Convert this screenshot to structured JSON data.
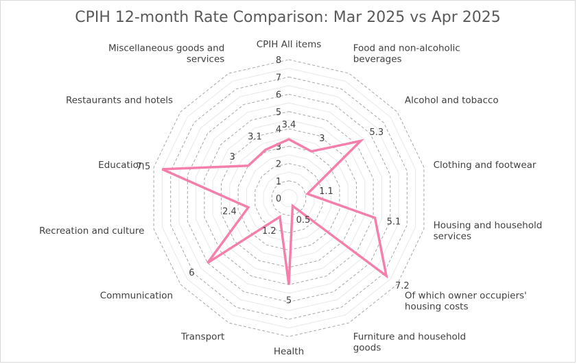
{
  "chart_data": {
    "type": "radar",
    "title": "CPIH 12-month Rate Comparison: Mar 2025 vs Apr 2025",
    "categories": [
      [
        "CPIH All items"
      ],
      [
        "Food and non-alcoholic",
        "beverages"
      ],
      [
        "Alcohol and tobacco"
      ],
      [
        "Clothing and footwear"
      ],
      [
        "Housing and  household",
        "services"
      ],
      [
        "Of which owner  occupiers'",
        "housing costs"
      ],
      [
        "Furniture and  household",
        "goods"
      ],
      [
        "Health"
      ],
      [
        "Transport"
      ],
      [
        "Communication"
      ],
      [
        "Recreation and culture"
      ],
      [
        "Education"
      ],
      [
        "Restaurants and  hotels"
      ],
      [
        "Miscellaneous goods  and",
        "services"
      ]
    ],
    "series": [
      {
        "values": [
          3.4,
          3,
          5.3,
          1.1,
          5.1,
          7.2,
          0.5,
          5,
          1.2,
          6,
          2.4,
          7.5,
          3,
          3.1
        ],
        "color": "#f47fac"
      }
    ],
    "radial_axis": {
      "min": 0,
      "max": 8,
      "step": 1,
      "tick_labels": [
        "0",
        "1",
        "2",
        "3",
        "4",
        "5",
        "6",
        "7",
        "8"
      ]
    },
    "grid": true,
    "data_labels": true,
    "legend": "none"
  }
}
